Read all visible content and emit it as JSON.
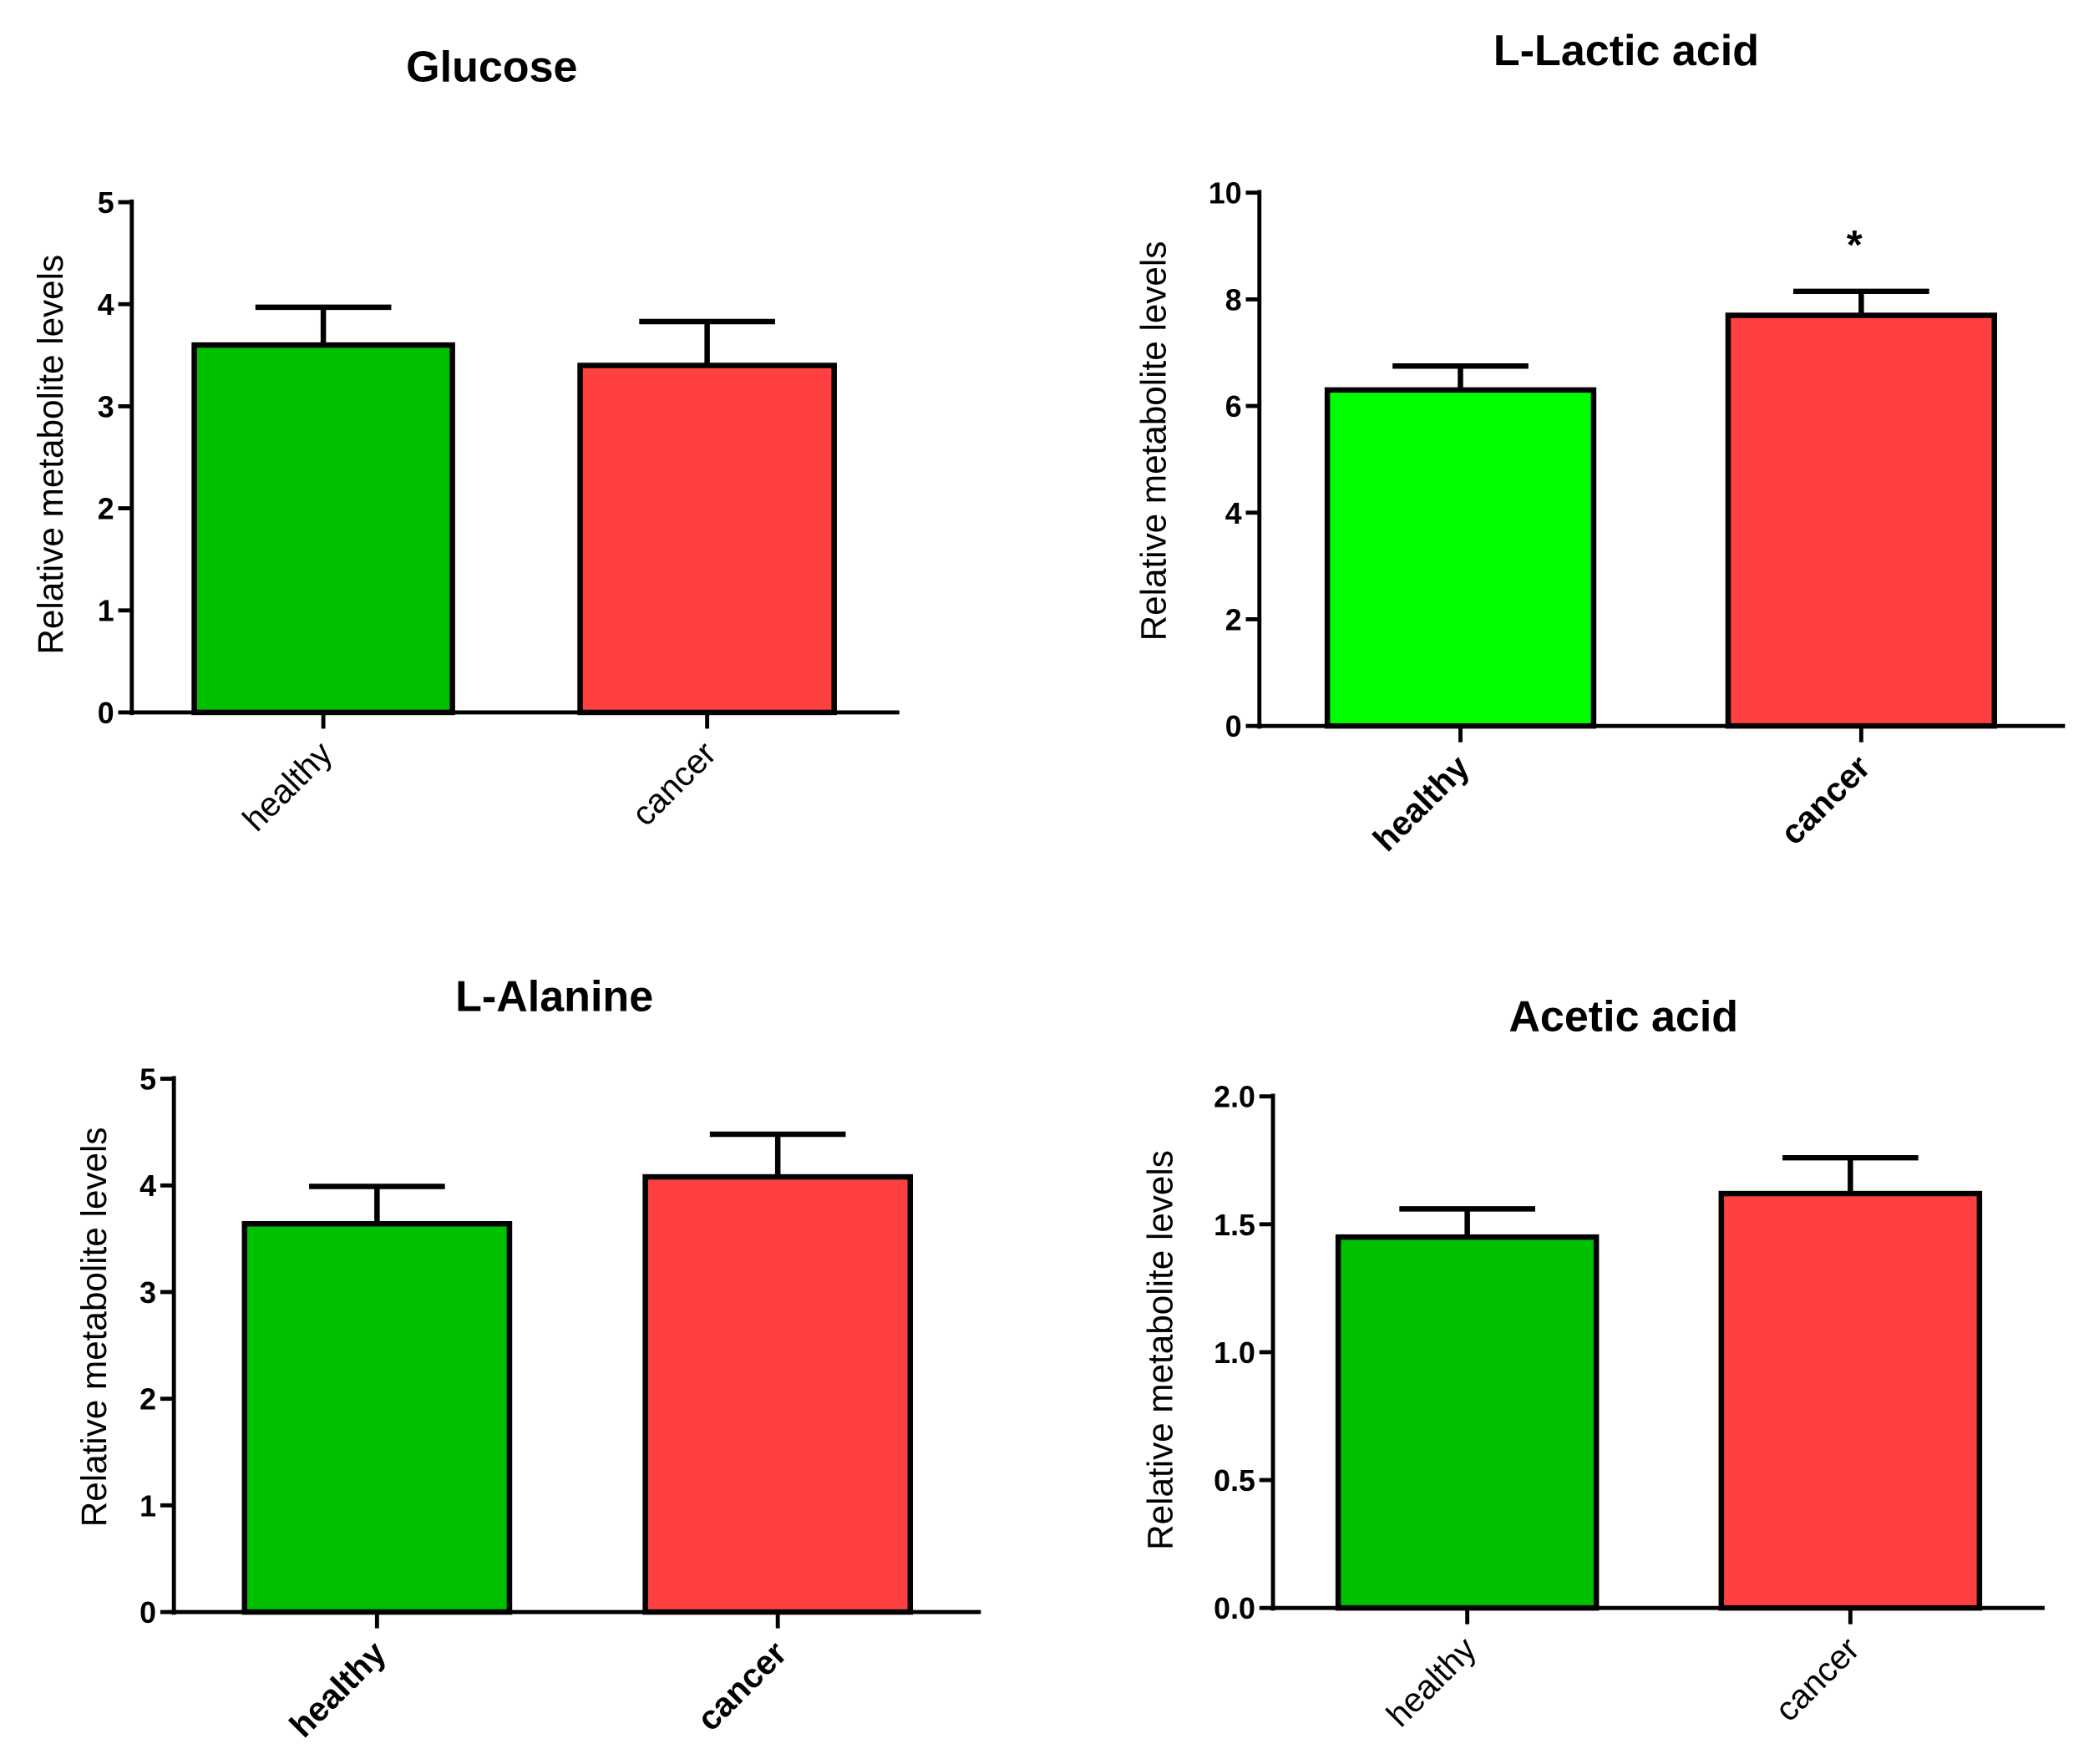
{
  "chart_data": [
    {
      "type": "bar",
      "title": "Glucose",
      "ylabel": "Relative metabolite levels",
      "xlabel": "",
      "categories": [
        "healthy",
        "cancer"
      ],
      "values": [
        3.6,
        3.4
      ],
      "error_upper": [
        0.37,
        0.43
      ],
      "colors": [
        "#00c000",
        "#ff4040"
      ],
      "ylim": [
        0,
        5
      ],
      "yticks": [
        "0",
        "1",
        "2",
        "3",
        "4",
        "5"
      ],
      "ytick_values": [
        0,
        1,
        2,
        3,
        4,
        5
      ],
      "annotations": [
        "",
        ""
      ],
      "grid": false
    },
    {
      "type": "bar",
      "title": "L-Lactic acid",
      "ylabel": "Relative metabolite levels",
      "xlabel": "",
      "categories": [
        "healthy",
        "cancer"
      ],
      "values": [
        6.3,
        7.7
      ],
      "error_upper": [
        0.45,
        0.45
      ],
      "colors": [
        "#00ff00",
        "#ff4040"
      ],
      "ylim": [
        0,
        10
      ],
      "yticks": [
        "0",
        "2",
        "4",
        "6",
        "8",
        "10"
      ],
      "ytick_values": [
        0,
        2,
        4,
        6,
        8,
        10
      ],
      "annotations": [
        "",
        "*"
      ],
      "grid": false
    },
    {
      "type": "bar",
      "title": "L-Alanine",
      "ylabel": "Relative metabolite levels",
      "xlabel": "",
      "categories": [
        "healthy",
        "cancer"
      ],
      "values": [
        3.64,
        4.08
      ],
      "error_upper": [
        0.35,
        0.4
      ],
      "colors": [
        "#00c000",
        "#ff4040"
      ],
      "ylim": [
        0,
        5
      ],
      "yticks": [
        "0",
        "1",
        "2",
        "3",
        "4",
        "5"
      ],
      "ytick_values": [
        0,
        1,
        2,
        3,
        4,
        5
      ],
      "annotations": [
        "",
        ""
      ],
      "grid": false
    },
    {
      "type": "bar",
      "title": "Acetic acid",
      "ylabel": "Relative metabolite levels",
      "xlabel": "",
      "categories": [
        "healthy",
        "cancer"
      ],
      "values": [
        1.45,
        1.62
      ],
      "error_upper": [
        0.11,
        0.14
      ],
      "colors": [
        "#00c000",
        "#ff4040"
      ],
      "ylim": [
        0,
        2.0
      ],
      "yticks": [
        "0.0",
        "0.5",
        "1.0",
        "1.5",
        "2.0"
      ],
      "ytick_values": [
        0,
        0.5,
        1.0,
        1.5,
        2.0
      ],
      "annotations": [
        "",
        ""
      ],
      "grid": false
    }
  ]
}
